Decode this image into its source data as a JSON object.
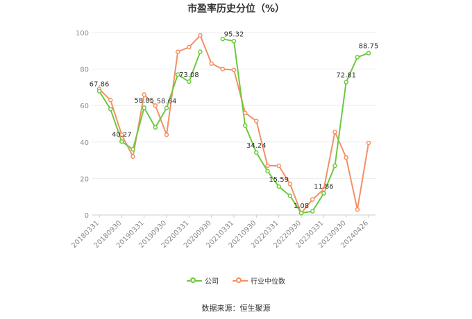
{
  "title": "市盈率历史分位（%）",
  "source": "数据来源：恒生聚源",
  "chart_data": {
    "type": "line",
    "ylim": [
      0,
      100
    ],
    "yticks": [
      0,
      20,
      40,
      60,
      80,
      100
    ],
    "grid": true,
    "legend_position": "bottom",
    "x": [
      "20180331",
      "20180630",
      "20180930",
      "20181231",
      "20190331",
      "20190630",
      "20190930",
      "20191231",
      "20200331",
      "20200630",
      "20200930",
      "20201231",
      "20210331",
      "20210630",
      "20210930",
      "20211231",
      "20220331",
      "20220630",
      "20220930",
      "20221231",
      "20230331",
      "20230630",
      "20230930",
      "20231231",
      "20240426"
    ],
    "x_tick_labels": [
      "20180331",
      "20180930",
      "20190331",
      "20190930",
      "20200331",
      "20200930",
      "20210331",
      "20210930",
      "20220331",
      "20220930",
      "20230331",
      "20230930",
      "20240426"
    ],
    "series": [
      {
        "name": "公司",
        "color": "#6cc93d",
        "values": [
          67.86,
          58,
          40.27,
          36,
          58.85,
          48,
          58.64,
          77,
          73.08,
          89.5,
          null,
          96.5,
          95.32,
          49,
          34.24,
          24,
          15.59,
          10.5,
          1.08,
          2,
          11.86,
          27,
          72.81,
          86.5,
          88.75
        ],
        "labels": {
          "0": "67.86",
          "2": "40.27",
          "4": "58.85",
          "6": "58.64",
          "8": "73.08",
          "12": "95.32",
          "14": "34.24",
          "16": "15.59",
          "18": "1.08",
          "20": "11.86",
          "22": "72.81",
          "24": "88.75"
        }
      },
      {
        "name": "行业中位数",
        "color": "#f39064",
        "values": [
          69,
          63,
          44,
          32,
          66,
          60,
          44,
          89.5,
          92,
          98.5,
          83,
          80,
          79.5,
          56,
          51.5,
          27,
          27,
          17,
          1,
          8.5,
          14,
          45.5,
          31.5,
          3,
          39.5
        ],
        "labels": {}
      }
    ]
  }
}
